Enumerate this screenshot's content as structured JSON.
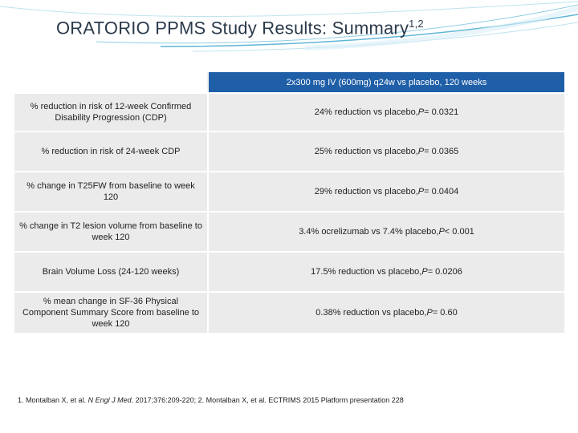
{
  "title": {
    "main": "ORATORIO PPMS Study Results: Summary",
    "superscript": "1,2"
  },
  "table": {
    "column_header": "2x300 mg IV (600mg) q24w vs placebo, 120 weeks",
    "rows": [
      {
        "label": "% reduction in risk of 12-week Confirmed Disability Progression (CDP)",
        "prefix": "24% reduction vs placebo, ",
        "p": "P",
        "suffix": " = 0.0321"
      },
      {
        "label": "% reduction in risk of 24-week CDP",
        "prefix": "25% reduction vs placebo, ",
        "p": "P",
        "suffix": " = 0.0365"
      },
      {
        "label": "% change in T25FW from baseline to week 120",
        "prefix": "29% reduction vs placebo, ",
        "p": "P",
        "suffix": " = 0.0404"
      },
      {
        "label": "% change in T2 lesion volume from baseline to week 120",
        "prefix": "3.4% ocrelizumab vs 7.4% placebo, ",
        "p": "P",
        "suffix": " < 0.001"
      },
      {
        "label": "Brain Volume Loss (24-120 weeks)",
        "prefix": "17.5% reduction vs placebo, ",
        "p": "P",
        "suffix": " = 0.0206"
      },
      {
        "label": "% mean change in SF-36 Physical Component Summary Score from baseline to week 120",
        "prefix": "0.38% reduction vs placebo, ",
        "p": "P",
        "suffix": " = 0.60"
      }
    ]
  },
  "references": {
    "part1": "1. Montalban X, et al. ",
    "journal": "N Engl J Med",
    "part2": ". 2017;376:209-220; 2. Montalban X, et al. ECTRIMS 2015 Platform presentation 228"
  },
  "colors": {
    "header_blue": "#1f5fa8",
    "swoosh": "#5fb6d6"
  }
}
